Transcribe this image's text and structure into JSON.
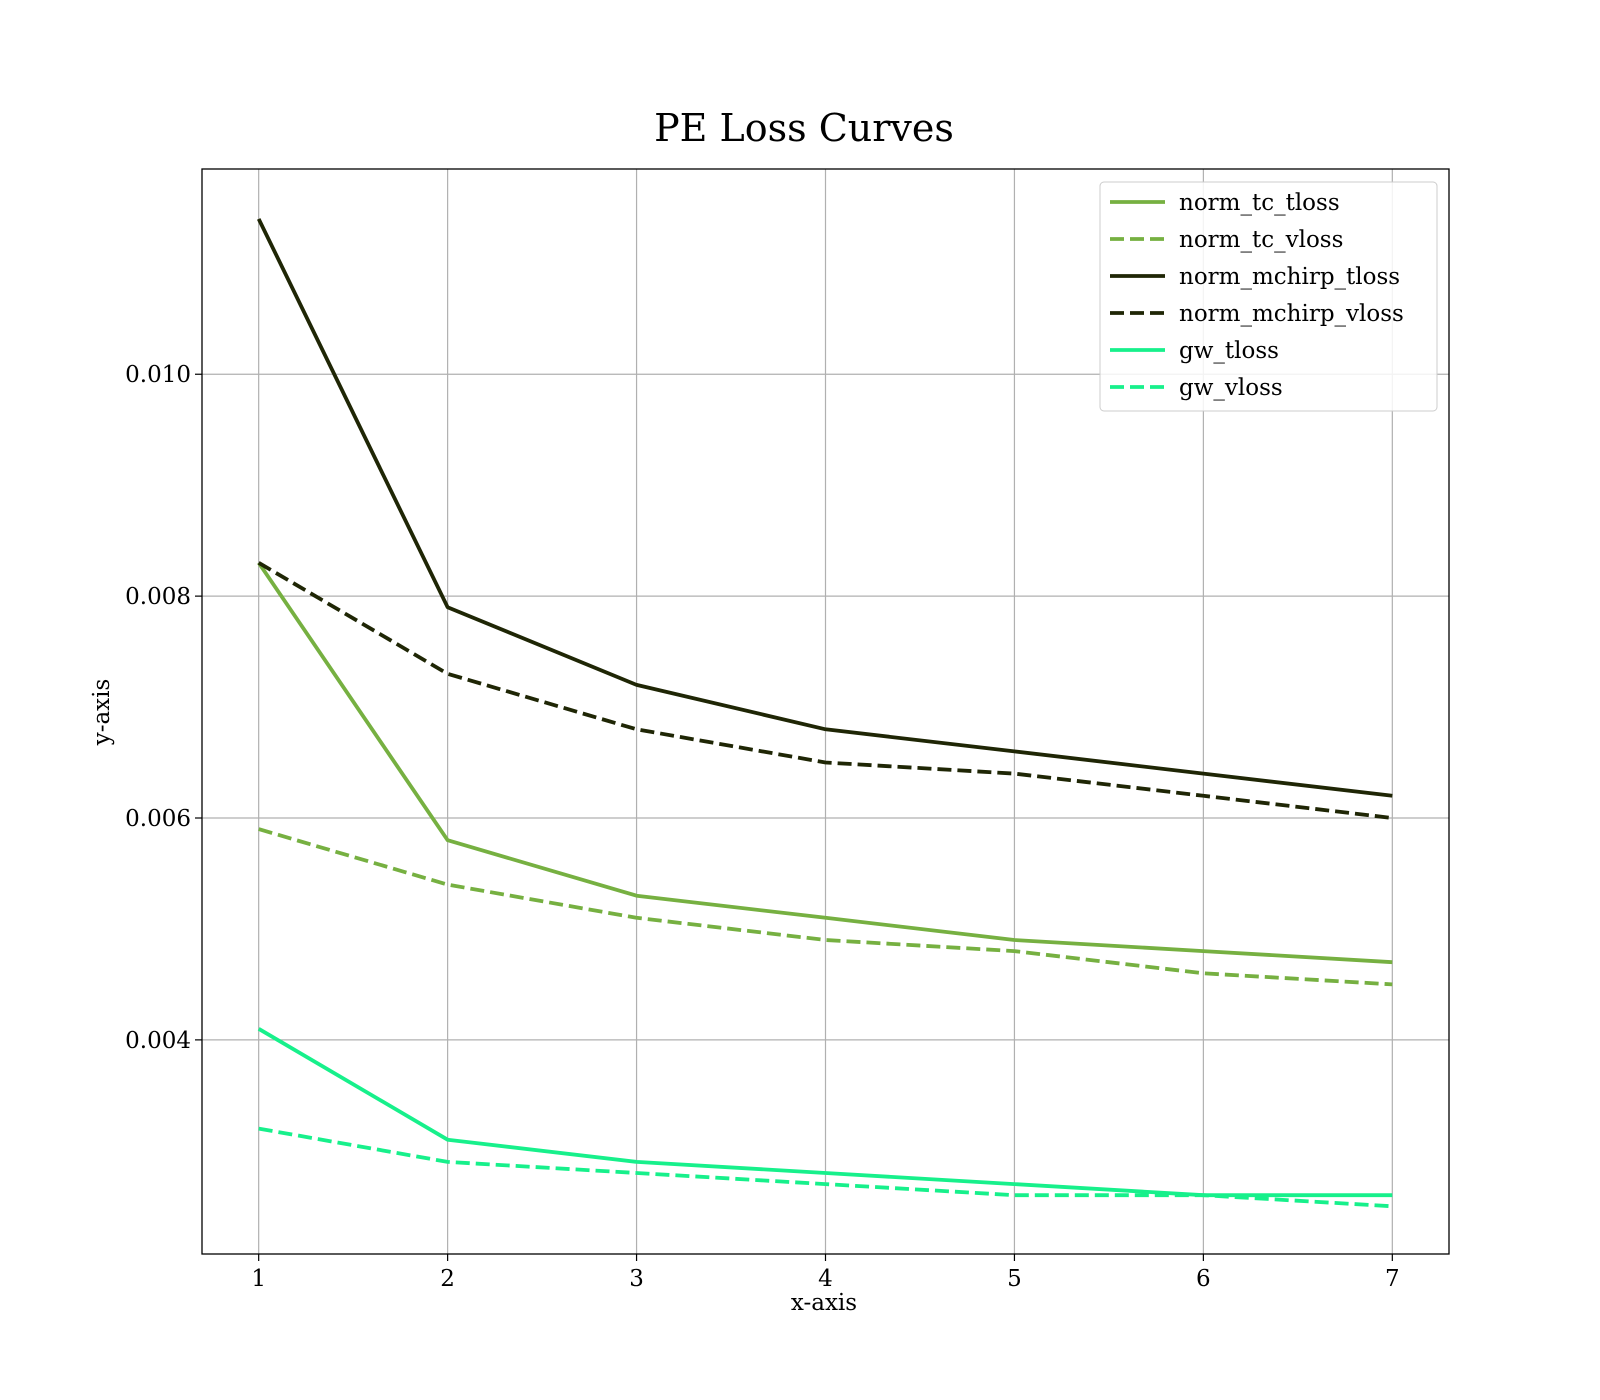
{
  "chart_data": {
    "type": "line",
    "title": "PE Loss Curves",
    "xlabel": "x-axis",
    "ylabel": "y-axis",
    "x": [
      1,
      2,
      3,
      4,
      5,
      6,
      7
    ],
    "xticks": [
      1,
      2,
      3,
      4,
      5,
      6,
      7
    ],
    "xtick_labels": [
      "1",
      "2",
      "3",
      "4",
      "5",
      "6",
      "7"
    ],
    "yticks": [
      0.004,
      0.006,
      0.008,
      0.01
    ],
    "ytick_labels": [
      "0.004",
      "0.006",
      "0.008",
      "0.010"
    ],
    "xlim": [
      0.7,
      7.3
    ],
    "ylim": [
      0.00207,
      0.01185
    ],
    "grid": true,
    "legend_position": "top-right",
    "series": [
      {
        "name": "norm_tc_tloss",
        "color": "#76b041",
        "dash": "solid",
        "values": [
          0.0083,
          0.0058,
          0.0053,
          0.0051,
          0.0049,
          0.0048,
          0.0047
        ]
      },
      {
        "name": "norm_tc_vloss",
        "color": "#76b041",
        "dash": "dashed",
        "values": [
          0.0059,
          0.0054,
          0.0051,
          0.0049,
          0.0048,
          0.0046,
          0.0045
        ]
      },
      {
        "name": "norm_mchirp_tloss",
        "color": "#1f2605",
        "dash": "solid",
        "values": [
          0.0114,
          0.0079,
          0.0072,
          0.0068,
          0.0066,
          0.0064,
          0.0062
        ]
      },
      {
        "name": "norm_mchirp_vloss",
        "color": "#1f2605",
        "dash": "dashed",
        "values": [
          0.0083,
          0.0073,
          0.0068,
          0.0065,
          0.0064,
          0.0062,
          0.006
        ]
      },
      {
        "name": "gw_tloss",
        "color": "#17f08b",
        "dash": "solid",
        "values": [
          0.0041,
          0.0031,
          0.0029,
          0.0028,
          0.0027,
          0.0026,
          0.0026
        ]
      },
      {
        "name": "gw_vloss",
        "color": "#17f08b",
        "dash": "dashed",
        "values": [
          0.0032,
          0.0029,
          0.0028,
          0.0027,
          0.0026,
          0.0026,
          0.0025
        ]
      }
    ]
  }
}
